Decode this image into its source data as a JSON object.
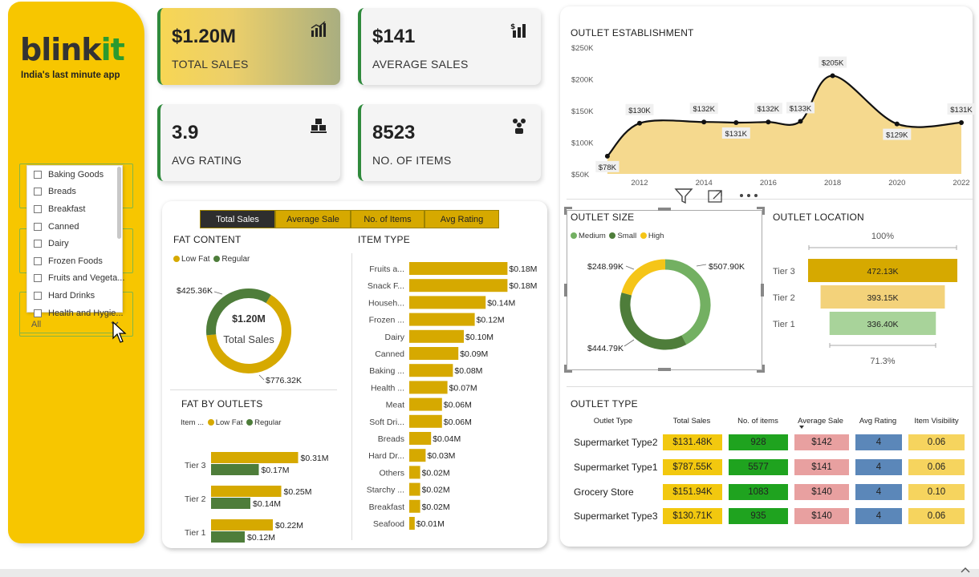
{
  "brand": {
    "name_a": "blink",
    "name_b": "it",
    "tagline": "India's last minute app",
    "color_brand": "#2c9a2f"
  },
  "filter": {
    "items": [
      "Baking Goods",
      "Breads",
      "Breakfast",
      "Canned",
      "Dairy",
      "Frozen Foods",
      "Fruits and Vegeta...",
      "Hard Drinks",
      "Health and Hygie..."
    ],
    "selected": "All"
  },
  "kpis": {
    "total_sales": {
      "value": "$1.20M",
      "label": "TOTAL SALES",
      "icon": "bar-chart-icon"
    },
    "average_sales": {
      "value": "$141",
      "label": "AVERAGE SALES",
      "icon": "growth-chart-icon"
    },
    "avg_rating": {
      "value": "3.9",
      "label": "AVG RATING",
      "icon": "boxes-icon"
    },
    "no_of_items": {
      "value": "8523",
      "label": "NO. OF ITEMS",
      "icon": "users-icon"
    }
  },
  "tabs": [
    "Total Sales",
    "Average Sale",
    "No. of Items",
    "Avg Rating"
  ],
  "fat_content": {
    "title": "FAT CONTENT",
    "legend": [
      "Low Fat",
      "Regular"
    ],
    "center_value": "$1.20M",
    "center_label": "Total Sales",
    "label_regular": "$425.36K",
    "label_lowfat": "$776.32K"
  },
  "fat_by_outlets": {
    "title": "FAT BY OUTLETS",
    "legend_title": "Item ...",
    "legend": [
      "Low Fat",
      "Regular"
    ]
  },
  "item_type": {
    "title": "ITEM TYPE"
  },
  "outlet_establishment": {
    "title": "OUTLET ESTABLISHMENT"
  },
  "outlet_size": {
    "title": "OUTLET SIZE",
    "legend": [
      "Medium",
      "Small",
      "High"
    ]
  },
  "outlet_location": {
    "title": "OUTLET LOCATION",
    "top_label": "100%",
    "bottom_label": "71.3%"
  },
  "outlet_type": {
    "title": "OUTLET TYPE",
    "headers": [
      "Outlet Type",
      "Total Sales",
      "No. of items",
      "Average Sale",
      "Avg Rating",
      "Item Visibility"
    ],
    "rows": [
      {
        "name": "Supermarket Type2",
        "sales": "$131.48K",
        "items": "928",
        "avg": "$142",
        "rating": "4",
        "vis": "0.06"
      },
      {
        "name": "Supermarket Type1",
        "sales": "$787.55K",
        "items": "5577",
        "avg": "$141",
        "rating": "4",
        "vis": "0.06"
      },
      {
        "name": "Grocery Store",
        "sales": "$151.94K",
        "items": "1083",
        "avg": "$140",
        "rating": "4",
        "vis": "0.10"
      },
      {
        "name": "Supermarket Type3",
        "sales": "$130.71K",
        "items": "935",
        "avg": "$140",
        "rating": "4",
        "vis": "0.06"
      }
    ]
  },
  "colors": {
    "gold": "#d6a900",
    "green_dark": "#4e7d3a",
    "green_light": "#73b062",
    "yellow_light": "#f3d27a",
    "sidebar": "#f7c600",
    "cell_sales": "#f2c80f",
    "cell_items": "#1fa31f",
    "cell_avg": "#e8a0a0",
    "cell_rating": "#5b87b9",
    "cell_vis": "#f6d45e"
  },
  "chart_data": [
    {
      "type": "donut",
      "title": "FAT CONTENT",
      "center_text": "$1.20M Total Sales",
      "categories": [
        "Low Fat",
        "Regular"
      ],
      "values": [
        776.32,
        425.36
      ],
      "value_labels": [
        "$776.32K",
        "$425.36K"
      ],
      "unit": "$K"
    },
    {
      "type": "bar",
      "orientation": "horizontal",
      "title": "ITEM TYPE",
      "categories": [
        "Fruits a...",
        "Snack F...",
        "Househ...",
        "Frozen ...",
        "Dairy",
        "Canned",
        "Baking ...",
        "Health ...",
        "Meat",
        "Soft Dri...",
        "Breads",
        "Hard Dr...",
        "Others",
        "Starchy ...",
        "Breakfast",
        "Seafood"
      ],
      "values": [
        0.18,
        0.18,
        0.14,
        0.12,
        0.1,
        0.09,
        0.08,
        0.07,
        0.06,
        0.06,
        0.04,
        0.03,
        0.02,
        0.02,
        0.02,
        0.01
      ],
      "value_labels": [
        "$0.18M",
        "$0.18M",
        "$0.14M",
        "$0.12M",
        "$0.10M",
        "$0.09M",
        "$0.08M",
        "$0.07M",
        "$0.06M",
        "$0.06M",
        "$0.04M",
        "$0.03M",
        "$0.02M",
        "$0.02M",
        "$0.02M",
        "$0.01M"
      ],
      "unit": "$M"
    },
    {
      "type": "bar",
      "orientation": "horizontal",
      "title": "FAT BY OUTLETS",
      "categories": [
        "Tier 3",
        "Tier 2",
        "Tier 1"
      ],
      "series": [
        {
          "name": "Low Fat",
          "values": [
            0.31,
            0.25,
            0.22
          ],
          "value_labels": [
            "$0.31M",
            "$0.25M",
            "$0.22M"
          ]
        },
        {
          "name": "Regular",
          "values": [
            0.17,
            0.14,
            0.12
          ],
          "value_labels": [
            "$0.17M",
            "$0.14M",
            "$0.12M"
          ]
        }
      ],
      "unit": "$M"
    },
    {
      "type": "area",
      "title": "OUTLET ESTABLISHMENT",
      "x": [
        2011,
        2012,
        2014,
        2015,
        2016,
        2017,
        2018,
        2020,
        2022
      ],
      "values": [
        78,
        130,
        132,
        131,
        132,
        133,
        205,
        129,
        131
      ],
      "value_labels": [
        "$78K",
        "$130K",
        "$132K",
        "$131K",
        "$132K",
        "$133K",
        "$205K",
        "$129K",
        "$131K"
      ],
      "x_ticks": [
        "2012",
        "2014",
        "2016",
        "2018",
        "2020",
        "2022"
      ],
      "y_ticks": [
        "$50K",
        "$100K",
        "$150K",
        "$200K",
        "$250K"
      ],
      "ylim": [
        50,
        250
      ],
      "unit": "$K"
    },
    {
      "type": "donut",
      "title": "OUTLET SIZE",
      "categories": [
        "Medium",
        "Small",
        "High"
      ],
      "values": [
        507.9,
        444.79,
        248.99
      ],
      "value_labels": [
        "$507.90K",
        "$444.79K",
        "$248.99K"
      ],
      "unit": "$K"
    },
    {
      "type": "funnel",
      "title": "OUTLET LOCATION",
      "categories": [
        "Tier 3",
        "Tier 2",
        "Tier 1"
      ],
      "values": [
        472.13,
        393.15,
        336.4
      ],
      "value_labels": [
        "472.13K",
        "393.15K",
        "336.40K"
      ],
      "unit": "$K"
    }
  ]
}
